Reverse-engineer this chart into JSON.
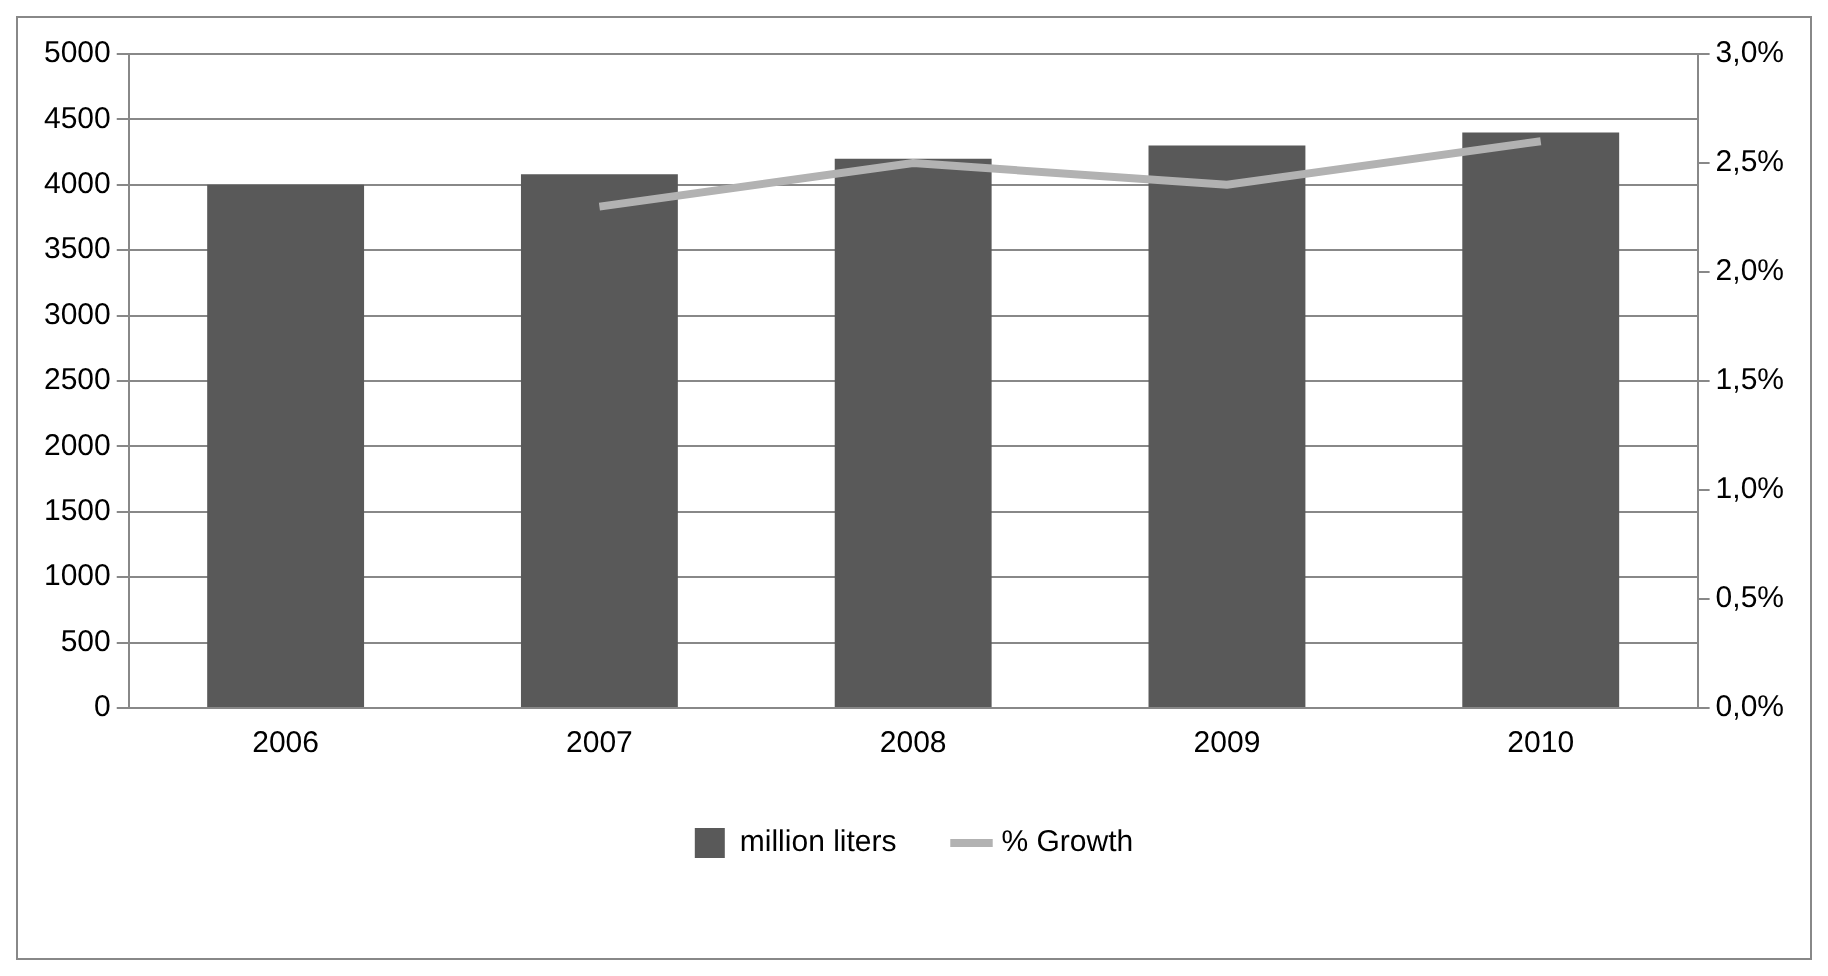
{
  "chart_data": {
    "type": "bar",
    "categories": [
      "2006",
      "2007",
      "2008",
      "2009",
      "2010"
    ],
    "series": [
      {
        "name": "million liters",
        "color": "#595959",
        "values": [
          4000,
          4080,
          4200,
          4300,
          4400
        ]
      },
      {
        "name": "% Growth",
        "type": "line",
        "axis": "y2",
        "color": "#b2b2b2",
        "values": [
          null,
          2.3,
          2.5,
          2.4,
          2.6
        ]
      }
    ],
    "ylim": [
      0,
      5000
    ],
    "yticks": [
      0,
      500,
      1000,
      1500,
      2000,
      2500,
      3000,
      3500,
      4000,
      4500,
      5000
    ],
    "y2lim": [
      0,
      3
    ],
    "y2ticks": [
      {
        "value": 0,
        "label": "0,0%"
      },
      {
        "value": 0.5,
        "label": "0,5%"
      },
      {
        "value": 1,
        "label": "1,0%"
      },
      {
        "value": 1.5,
        "label": "1,5%"
      },
      {
        "value": 2,
        "label": "2,0%"
      },
      {
        "value": 2.5,
        "label": "2,5%"
      },
      {
        "value": 3,
        "label": "3,0%"
      }
    ],
    "grid": "y",
    "legend": "bottom",
    "marker": "none",
    "line_style": "solid"
  }
}
